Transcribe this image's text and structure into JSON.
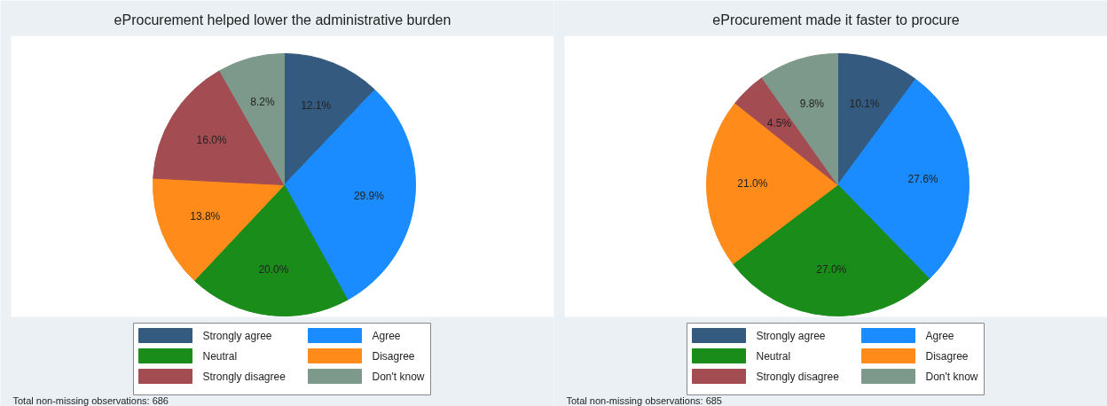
{
  "chart_data": [
    {
      "type": "pie",
      "title": "eProcurement helped lower the administrative burden",
      "categories": [
        "Strongly agree",
        "Agree",
        "Neutral",
        "Disagree",
        "Strongly disagree",
        "Don't know"
      ],
      "values": [
        12.1,
        29.9,
        20.0,
        13.8,
        16.0,
        8.2
      ],
      "colors": [
        "#345a80",
        "#1a8cff",
        "#1a8c1a",
        "#ff8c1a",
        "#a34d52",
        "#7d998c"
      ],
      "value_labels": [
        "12.1%",
        "29.9%",
        "20.0%",
        "13.8%",
        "16.0%",
        "8.2%"
      ],
      "legend": "bottom",
      "annotations": [
        "Total non-missing observations: 686"
      ]
    },
    {
      "type": "pie",
      "title": "eProcurement made it faster to procure",
      "categories": [
        "Strongly agree",
        "Agree",
        "Neutral",
        "Disagree",
        "Strongly disagree",
        "Don't know"
      ],
      "values": [
        10.1,
        27.6,
        27.0,
        21.0,
        4.5,
        9.8
      ],
      "colors": [
        "#345a80",
        "#1a8cff",
        "#1a8c1a",
        "#ff8c1a",
        "#a34d52",
        "#7d998c"
      ],
      "value_labels": [
        "10.1%",
        "27.6%",
        "27.0%",
        "21.0%",
        "4.5%",
        "9.8%"
      ],
      "legend": "bottom",
      "annotations": [
        "Total non-missing observations: 685"
      ]
    }
  ]
}
